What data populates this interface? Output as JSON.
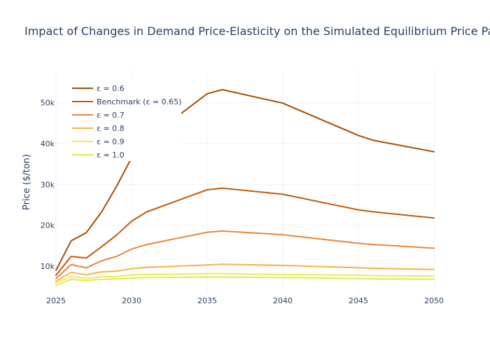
{
  "chart_data": {
    "type": "line",
    "title": "Impact of Changes in Demand Price-Elasticity on the Simulated Equilibrium Price Path",
    "xlabel": "",
    "ylabel": "Price ($/ton)",
    "xlim": [
      2025,
      2050
    ],
    "ylim": [
      3500,
      58000
    ],
    "x_ticks": [
      2025,
      2030,
      2035,
      2040,
      2045,
      2050
    ],
    "y_ticks": [
      10000,
      20000,
      30000,
      40000,
      50000
    ],
    "y_tick_labels": [
      "10k",
      "20k",
      "30k",
      "40k",
      "50k"
    ],
    "grid": true,
    "legend_position": "top-left",
    "x": [
      2025,
      2026,
      2027,
      2028,
      2029,
      2030,
      2031,
      2035,
      2036,
      2040,
      2045,
      2046,
      2050
    ],
    "series": [
      {
        "name": "ε = 0.6",
        "color": "#a44f00",
        "values": [
          9000,
          16200,
          18200,
          23200,
          29500,
          36500,
          41000,
          52200,
          53200,
          49900,
          42000,
          40800,
          38000
        ]
      },
      {
        "name": "Benchmark (ε = 0.65)",
        "color": "#c55a0a",
        "values": [
          7800,
          12400,
          12000,
          14700,
          17600,
          21000,
          23300,
          28700,
          29100,
          27600,
          23800,
          23300,
          21800
        ]
      },
      {
        "name": "ε = 0.7",
        "color": "#e8863b",
        "values": [
          7000,
          10400,
          9600,
          11300,
          12400,
          14200,
          15300,
          18300,
          18600,
          17700,
          15600,
          15300,
          14400
        ]
      },
      {
        "name": "ε = 0.8",
        "color": "#f5b347",
        "values": [
          6300,
          8500,
          7900,
          8600,
          8800,
          9400,
          9700,
          10300,
          10500,
          10200,
          9600,
          9500,
          9200
        ]
      },
      {
        "name": "ε = 0.9",
        "color": "#f4e84d",
        "values": [
          5900,
          7500,
          7000,
          7400,
          7500,
          7900,
          8000,
          8200,
          8200,
          8000,
          7800,
          7700,
          7600
        ]
      },
      {
        "name": "ε = 1.0",
        "color": "#d9ee4a",
        "values": [
          5300,
          6800,
          6500,
          6800,
          6900,
          7100,
          7200,
          7300,
          7300,
          7200,
          7000,
          6900,
          6800
        ]
      }
    ]
  }
}
